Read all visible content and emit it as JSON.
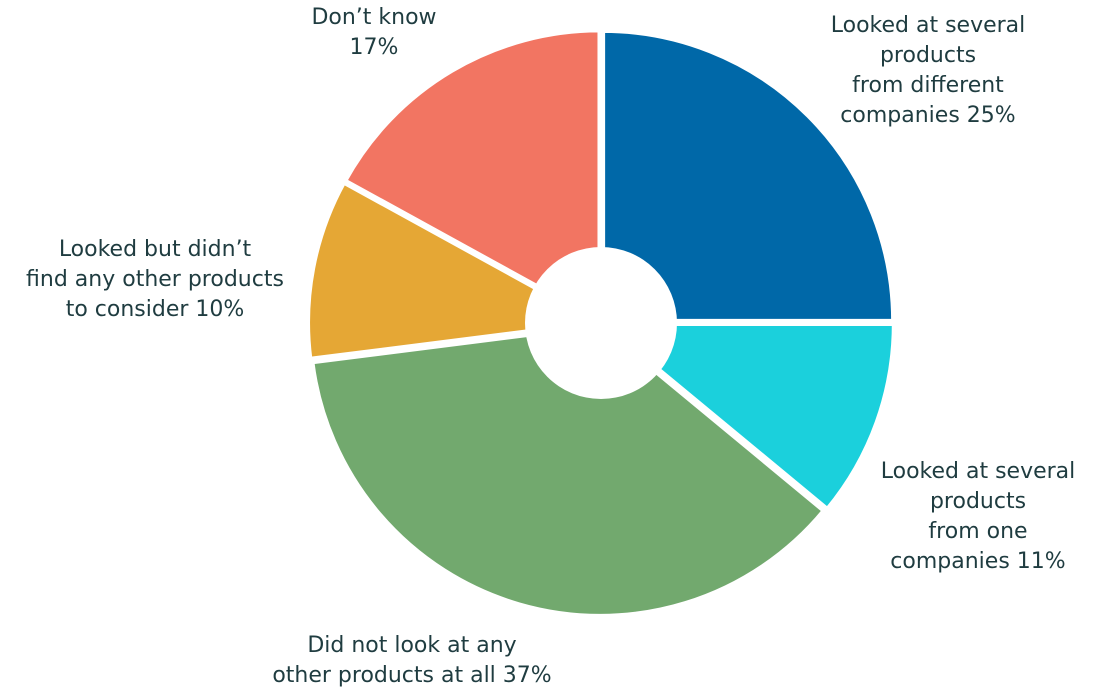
{
  "chart_data": {
    "type": "pie",
    "style": "donut",
    "title": "",
    "slices": [
      {
        "label_lines": [
          "Looked at several",
          "products",
          "from different",
          "companies 25%"
        ],
        "value": 25,
        "color": "#0068a8"
      },
      {
        "label_lines": [
          "Looked at several",
          "products",
          "from one",
          "companies 11%"
        ],
        "value": 11,
        "color": "#1bd0dc"
      },
      {
        "label_lines": [
          "Did not look at any",
          "other products at all 37%"
        ],
        "value": 37,
        "color": "#72a96e"
      },
      {
        "label_lines": [
          "Looked but didn’t",
          "find any other products",
          "to consider 10%"
        ],
        "value": 10,
        "color": "#e5a735"
      },
      {
        "label_lines": [
          "Don’t know",
          "17%"
        ],
        "value": 17,
        "color": "#f27562"
      }
    ],
    "start": "12 o'clock",
    "direction": "clockwise",
    "legend": "none"
  }
}
